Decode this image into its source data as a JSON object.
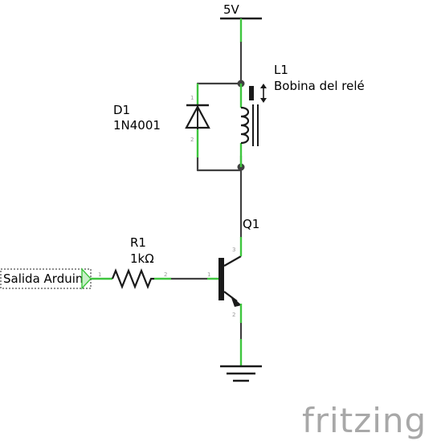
{
  "supply": {
    "label": "5V"
  },
  "relay_coil": {
    "ref": "L1",
    "name": "Bobina del relé"
  },
  "diode": {
    "ref": "D1",
    "part": "1N4001",
    "pin1": "1",
    "pin2": "2"
  },
  "transistor": {
    "ref": "Q1",
    "pin_base": "1",
    "pin_emitter": "2",
    "pin_collector": "3"
  },
  "resistor": {
    "ref": "R1",
    "value": "1kΩ",
    "pin1": "1",
    "pin2": "2"
  },
  "input": {
    "label": "Salida Arduino",
    "pin": "1"
  },
  "watermark": "fritzing",
  "colors": {
    "wire": "#404040",
    "pin_leg": "#3ec53e",
    "text": "#000000",
    "logo": "#a8a8a8"
  }
}
